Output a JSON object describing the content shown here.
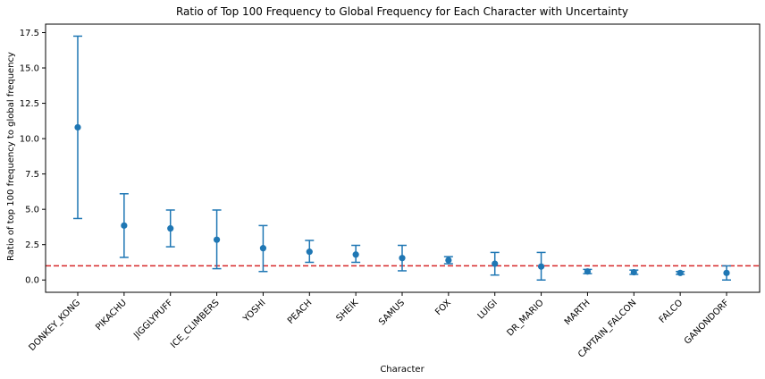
{
  "chart_data": {
    "type": "scatter",
    "title": "Ratio of Top 100 Frequency to Global Frequency for Each Character with Uncertainty",
    "xlabel": "Character",
    "ylabel": "Ratio of top 100 frequency to global frequency",
    "categories": [
      "DONKEY_KONG",
      "PIKACHU",
      "JIGGLYPUFF",
      "ICE_CLIMBERS",
      "YOSHI",
      "PEACH",
      "SHEIK",
      "SAMUS",
      "FOX",
      "LUIGI",
      "DR_MARIO",
      "MARTH",
      "CAPTAIN_FALCON",
      "FALCO",
      "GANONDORF"
    ],
    "values": [
      10.8,
      3.85,
      3.65,
      2.85,
      2.25,
      2.0,
      1.8,
      1.55,
      1.4,
      1.15,
      0.95,
      0.6,
      0.55,
      0.5,
      0.5
    ],
    "err_low": [
      4.35,
      1.6,
      2.35,
      0.8,
      0.6,
      1.25,
      1.25,
      0.65,
      1.15,
      0.35,
      0.0,
      0.45,
      0.4,
      0.4,
      0.0
    ],
    "err_high": [
      17.25,
      6.1,
      4.95,
      4.95,
      3.85,
      2.8,
      2.45,
      2.45,
      1.65,
      1.95,
      1.95,
      0.75,
      0.7,
      0.6,
      1.0
    ],
    "yticks": [
      "0.0",
      "2.5",
      "5.0",
      "7.5",
      "10.0",
      "12.5",
      "15.0",
      "17.5"
    ],
    "ylim": [
      -0.87,
      18.1
    ],
    "reference_line": 1.0,
    "colors": {
      "marker": "#1f77b4",
      "errorbar": "#1f77b4",
      "reference": "#d62728"
    },
    "grid": false
  }
}
